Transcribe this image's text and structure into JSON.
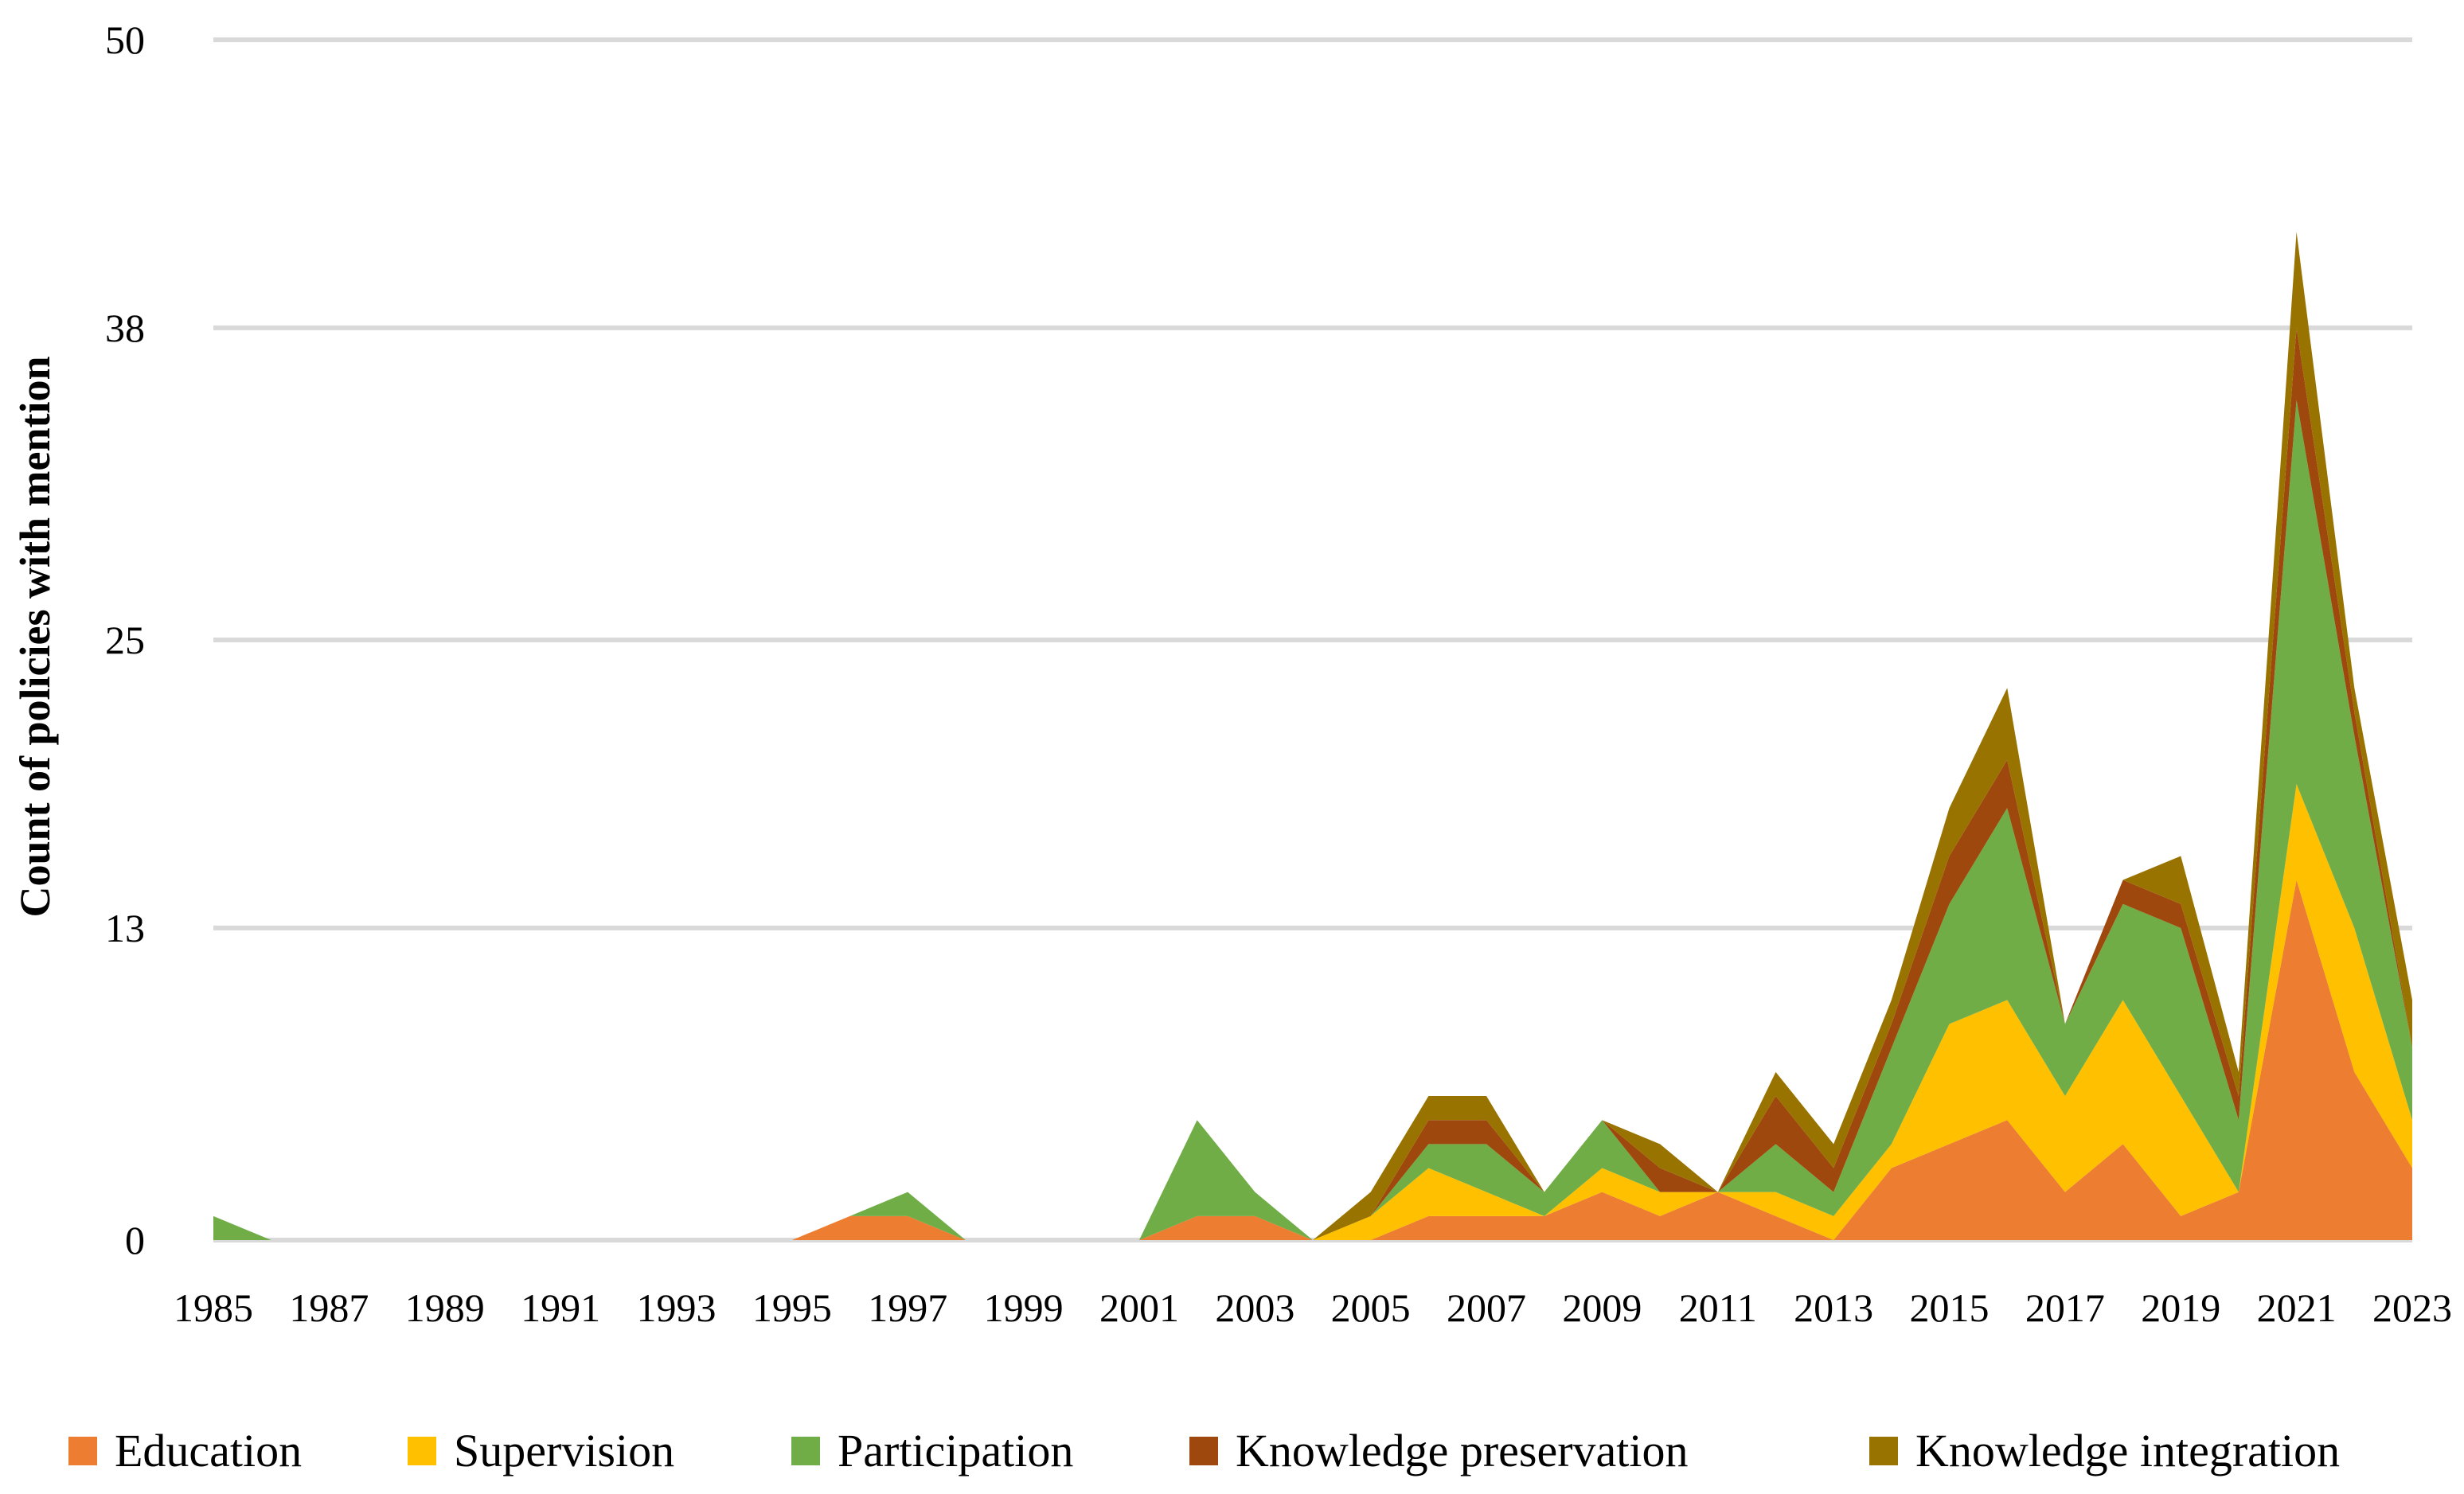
{
  "chart_data": {
    "type": "area",
    "stacked": true,
    "title": "",
    "xlabel": "",
    "ylabel": "Count of policies with mention",
    "ylim": [
      0,
      50
    ],
    "yticks": [
      0,
      13,
      25,
      38,
      50
    ],
    "grid": true,
    "legend_position": "bottom",
    "x": [
      1985,
      1986,
      1987,
      1988,
      1989,
      1990,
      1991,
      1992,
      1993,
      1994,
      1995,
      1996,
      1997,
      1998,
      1999,
      2000,
      2001,
      2002,
      2003,
      2004,
      2005,
      2006,
      2007,
      2008,
      2009,
      2010,
      2011,
      2012,
      2013,
      2014,
      2015,
      2016,
      2017,
      2018,
      2019,
      2020,
      2021,
      2022,
      2023
    ],
    "xtick_labels": [
      "1985",
      "1987",
      "1989",
      "1991",
      "1993",
      "1995",
      "1997",
      "1999",
      "2001",
      "2003",
      "2005",
      "2007",
      "2009",
      "2011",
      "2013",
      "2015",
      "2017",
      "2019",
      "2021",
      "2023"
    ],
    "series": [
      {
        "name": "Education",
        "color": "#ED7D31",
        "values": [
          0,
          0,
          0,
          0,
          0,
          0,
          0,
          0,
          0,
          0,
          0,
          1,
          1,
          0,
          0,
          0,
          0,
          1,
          1,
          0,
          0,
          1,
          1,
          1,
          2,
          1,
          2,
          1,
          0,
          3,
          4,
          5,
          2,
          4,
          1,
          2,
          15,
          7,
          3
        ]
      },
      {
        "name": "Supervision",
        "color": "#FFC000",
        "values": [
          0,
          0,
          0,
          0,
          0,
          0,
          0,
          0,
          0,
          0,
          0,
          0,
          0,
          0,
          0,
          0,
          0,
          0,
          0,
          0,
          1,
          2,
          1,
          0,
          1,
          1,
          0,
          1,
          1,
          1,
          5,
          5,
          4,
          6,
          5,
          0,
          4,
          6,
          2
        ]
      },
      {
        "name": "Participation",
        "color": "#70AD47",
        "values": [
          1,
          0,
          0,
          0,
          0,
          0,
          0,
          0,
          0,
          0,
          0,
          0,
          1,
          0,
          0,
          0,
          0,
          4,
          1,
          0,
          0,
          1,
          2,
          1,
          2,
          0,
          0,
          2,
          1,
          4,
          5,
          8,
          3,
          4,
          7,
          3,
          16,
          8,
          3
        ]
      },
      {
        "name": "Knowledge preservation",
        "color": "#9E480E",
        "values": [
          0,
          0,
          0,
          0,
          0,
          0,
          0,
          0,
          0,
          0,
          0,
          0,
          0,
          0,
          0,
          0,
          0,
          0,
          0,
          0,
          0,
          1,
          1,
          0,
          0,
          1,
          0,
          2,
          1,
          1,
          2,
          2,
          0,
          1,
          1,
          1,
          3,
          1,
          0
        ]
      },
      {
        "name": "Knowledge integration",
        "color": "#997300",
        "values": [
          0,
          0,
          0,
          0,
          0,
          0,
          0,
          0,
          0,
          0,
          0,
          0,
          0,
          0,
          0,
          0,
          0,
          0,
          0,
          0,
          1,
          1,
          1,
          0,
          0,
          1,
          0,
          1,
          1,
          1,
          2,
          3,
          0,
          0,
          2,
          1,
          4,
          1,
          2
        ]
      }
    ]
  }
}
